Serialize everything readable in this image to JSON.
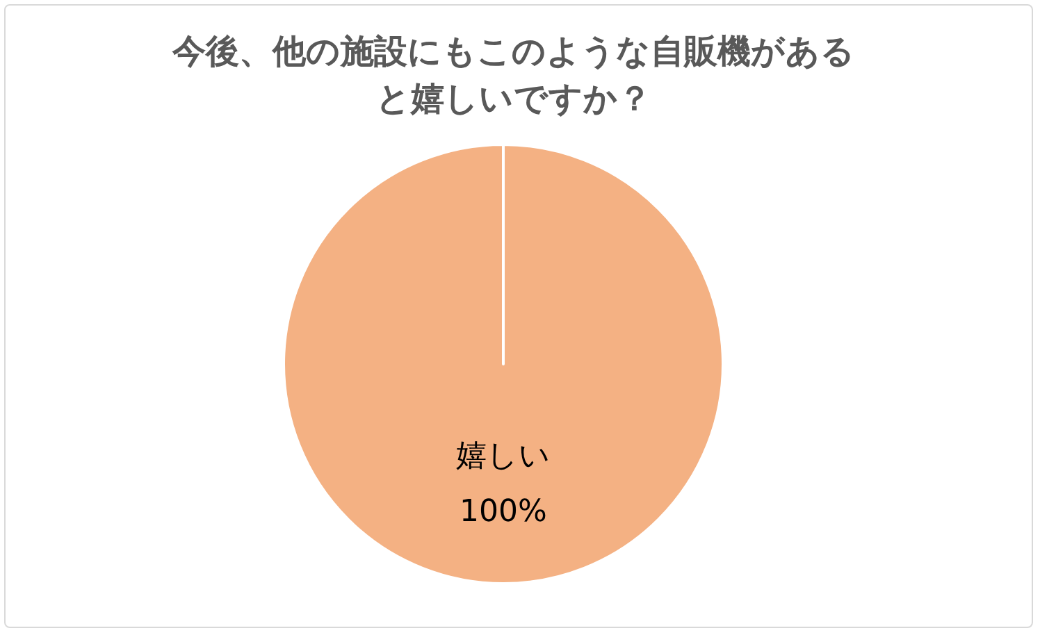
{
  "chart_data": {
    "type": "pie",
    "title": "今後、他の施設にもこのような自販機があると嬉しいですか？",
    "categories": [
      "嬉しい"
    ],
    "values": [
      100
    ],
    "colors": [
      "#f4b183"
    ],
    "value_labels": [
      "100%"
    ],
    "legend": false
  }
}
